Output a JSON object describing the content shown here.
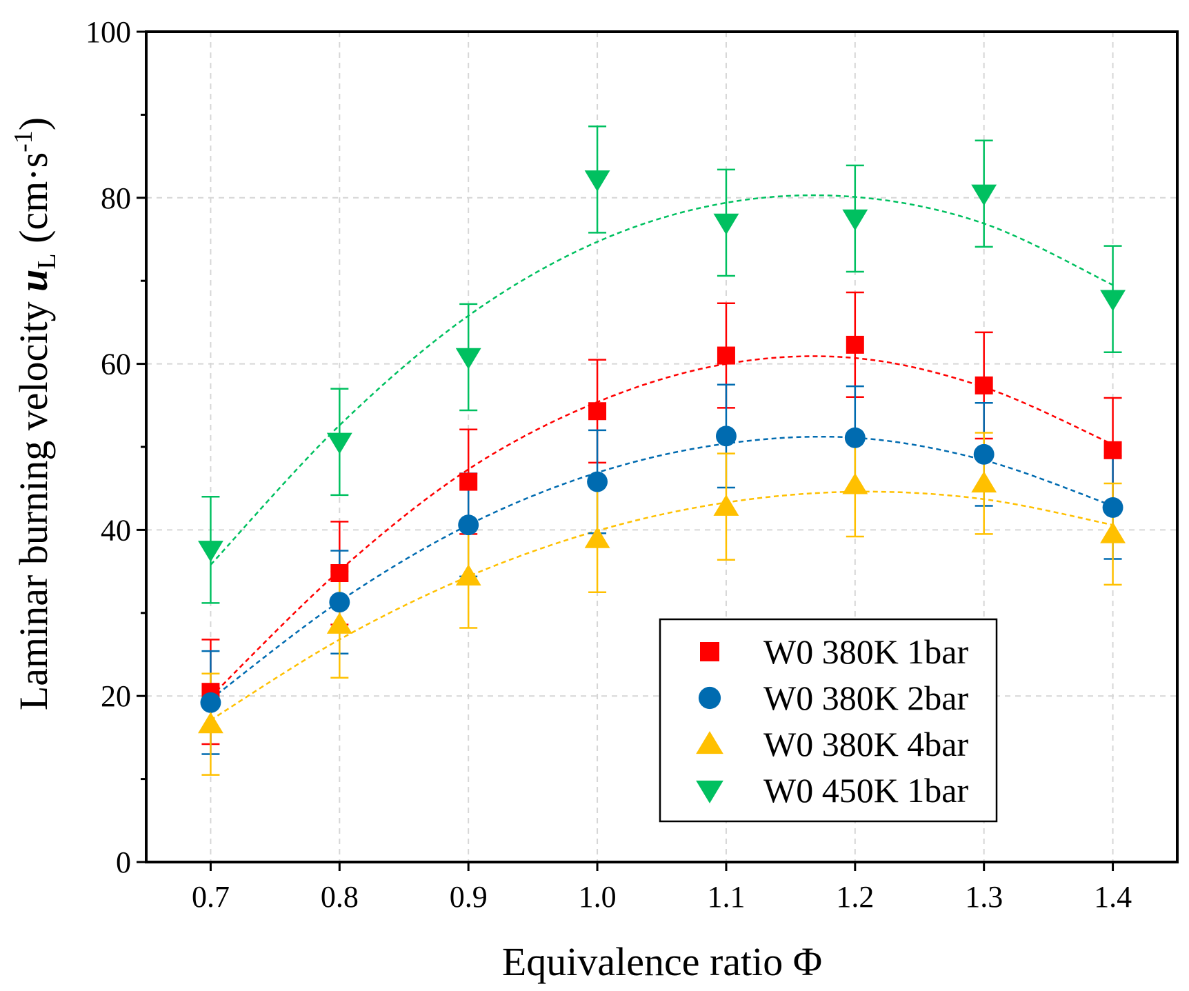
{
  "chart_data": {
    "type": "scatter",
    "title": "",
    "xlabel": "Equivalence ratio Φ",
    "ylabel_parts": {
      "prefix": "Laminar burning velocity ",
      "symbol": "u",
      "subscript": "L",
      "unit_open": " (cm·s",
      "unit_power": "-1",
      "unit_close": ")"
    },
    "xlim": [
      0.65,
      1.45
    ],
    "ylim": [
      0,
      100
    ],
    "grid": true,
    "legend_position": "bottom-right",
    "x": [
      0.7,
      0.8,
      0.9,
      1.0,
      1.1,
      1.2,
      1.3,
      1.4
    ],
    "x_tick_labels": [
      "0.7",
      "0.8",
      "0.9",
      "1.0",
      "1.1",
      "1.2",
      "1.3",
      "1.4"
    ],
    "y_ticks": [
      0,
      20,
      40,
      60,
      80,
      100
    ],
    "y_tick_labels": [
      "0",
      "20",
      "40",
      "60",
      "80",
      "100"
    ],
    "series": [
      {
        "name": "W0 380K 1bar",
        "marker": "square",
        "color": "#ff0000",
        "values": [
          20.5,
          34.8,
          45.8,
          54.3,
          61.0,
          62.3,
          57.4,
          49.6
        ],
        "errors": [
          6.3,
          6.2,
          6.3,
          6.2,
          6.3,
          6.3,
          6.4,
          6.3
        ],
        "fit": [
          19.9,
          35.1,
          47.3,
          55.4,
          60.0,
          60.7,
          57.2,
          50.3
        ]
      },
      {
        "name": "W0 380K 2bar",
        "marker": "circle",
        "color": "#006bb0",
        "values": [
          19.2,
          31.3,
          40.6,
          45.8,
          51.3,
          51.1,
          49.1,
          42.7
        ],
        "errors": [
          6.2,
          6.2,
          6.2,
          6.2,
          6.2,
          6.2,
          6.2,
          6.2
        ],
        "fit": [
          19.6,
          31.4,
          40.6,
          46.9,
          50.4,
          51.1,
          48.4,
          42.9
        ]
      },
      {
        "name": "W0 380K 4bar",
        "marker": "triangle-up",
        "color": "#ffc000",
        "values": [
          16.6,
          28.6,
          34.4,
          38.9,
          42.8,
          45.4,
          45.6,
          39.5
        ],
        "errors": [
          6.1,
          6.4,
          6.2,
          6.4,
          6.4,
          6.2,
          6.1,
          6.1
        ],
        "fit": [
          17.1,
          26.8,
          34.4,
          39.9,
          43.3,
          44.6,
          43.7,
          40.6
        ]
      },
      {
        "name": "W0 450K 1bar",
        "marker": "triangle-down",
        "color": "#00c060",
        "values": [
          37.6,
          50.6,
          60.8,
          82.2,
          77.0,
          77.5,
          80.5,
          67.8
        ],
        "errors": [
          6.4,
          6.4,
          6.4,
          6.4,
          6.4,
          6.4,
          6.4,
          6.4
        ],
        "fit": [
          35.8,
          52.6,
          65.8,
          74.7,
          79.4,
          80.1,
          76.9,
          69.5
        ]
      }
    ]
  }
}
